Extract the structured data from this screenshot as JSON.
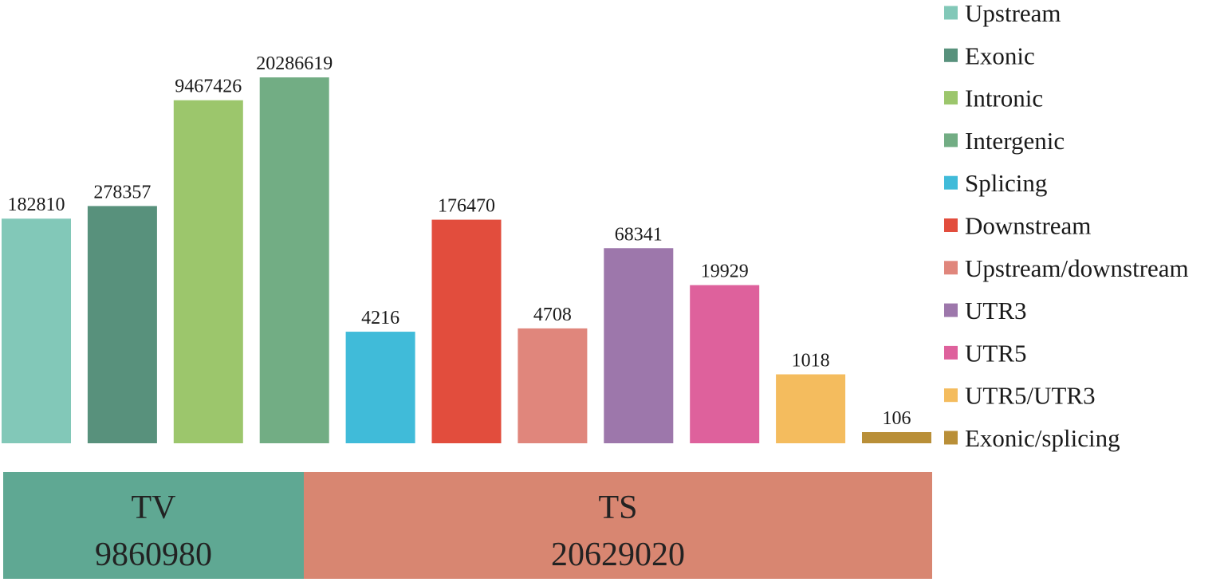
{
  "chart_data": {
    "type": "bar",
    "title": "",
    "xlabel": "",
    "ylabel": "",
    "categories": [
      "Upstream",
      "Exonic",
      "Intronic",
      "Intergenic",
      "Splicing",
      "Downstream",
      "Upstream/downstream",
      "UTR3",
      "UTR5",
      "UTR5/UTR3",
      "Exonic/splicing"
    ],
    "values": [
      182810,
      278357,
      9467426,
      20286619,
      4216,
      176470,
      4708,
      68341,
      19929,
      1018,
      106
    ],
    "value_labels": [
      "182810",
      "278357",
      "9467426",
      "20286619",
      "4216",
      "176470",
      "4708",
      "68341",
      "19929",
      "1018",
      "106"
    ],
    "colors": [
      "#82c8b8",
      "#58917c",
      "#9cc66c",
      "#72ad84",
      "#40bbd9",
      "#e24d3d",
      "#e0867c",
      "#9d77ab",
      "#de619c",
      "#f4bc5e",
      "#b98f38"
    ],
    "scale": "log",
    "grid": false,
    "legend": {
      "placement": "right",
      "entries": [
        "Upstream",
        "Exonic",
        "Intronic",
        "Intergenic",
        "Splicing",
        "Downstream",
        "Upstream/downstream",
        "UTR3",
        "UTR5",
        "UTR5/UTR3",
        "Exonic/splicing"
      ]
    },
    "groups": [
      {
        "name": "TV",
        "total": "9860980",
        "color": "#5fa893",
        "span": [
          0,
          3
        ]
      },
      {
        "name": "TS",
        "total": "20629020",
        "color": "#d88671",
        "span": [
          4,
          10
        ]
      }
    ]
  }
}
